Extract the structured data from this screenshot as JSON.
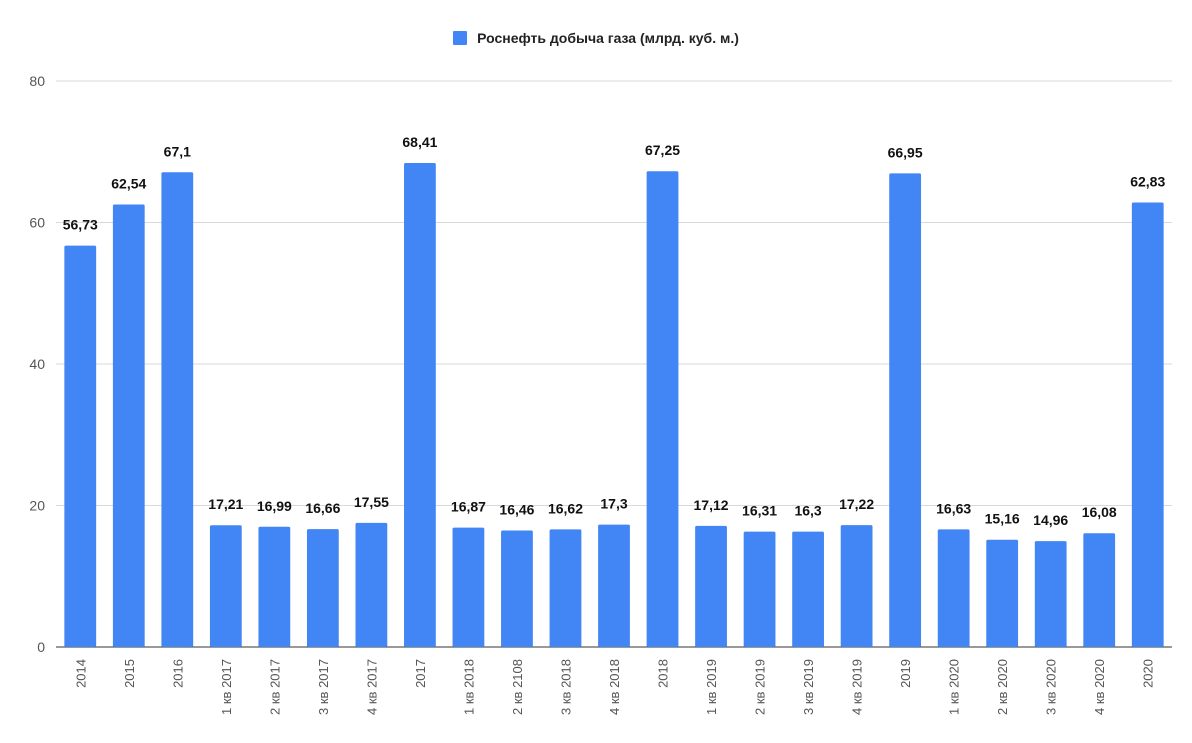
{
  "chart_data": {
    "type": "bar",
    "title": "",
    "xlabel": "",
    "ylabel": "",
    "ylim": [
      0,
      80
    ],
    "yticks": [
      0,
      20,
      40,
      60,
      80
    ],
    "grid": true,
    "legend_position": "top-center",
    "categories": [
      "2014",
      "2015",
      "2016",
      "1 кв 2017",
      "2 кв 2017",
      "3 кв 2017",
      "4 кв 2017",
      "2017",
      "1 кв 2018",
      "2 кв 2108",
      "3 кв 2018",
      "4 кв 2018",
      "2018",
      "1 кв 2019",
      "2 кв 2019",
      "3 кв 2019",
      "4 кв 2019",
      "2019",
      "1 кв 2020",
      "2 кв 2020",
      "3 кв 2020",
      "4 кв 2020",
      "2020"
    ],
    "series": [
      {
        "name": "Роснефть добыча газа (млрд. куб. м.)",
        "color": "#4285f4",
        "values": [
          56.73,
          62.54,
          67.1,
          17.21,
          16.99,
          16.66,
          17.55,
          68.41,
          16.87,
          16.46,
          16.62,
          17.3,
          67.25,
          17.12,
          16.31,
          16.3,
          17.22,
          66.95,
          16.63,
          15.16,
          14.96,
          16.08,
          62.83
        ],
        "labels": [
          "56,73",
          "62,54",
          "67,1",
          "17,21",
          "16,99",
          "16,66",
          "17,55",
          "68,41",
          "16,87",
          "16,46",
          "16,62",
          "17,3",
          "67,25",
          "17,12",
          "16,31",
          "16,3",
          "17,22",
          "66,95",
          "16,63",
          "15,16",
          "14,96",
          "16,08",
          "62,83"
        ]
      }
    ]
  }
}
